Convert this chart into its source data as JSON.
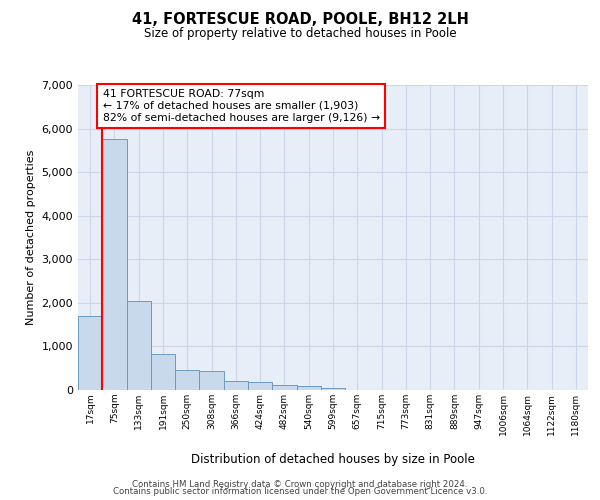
{
  "title": "41, FORTESCUE ROAD, POOLE, BH12 2LH",
  "subtitle": "Size of property relative to detached houses in Poole",
  "xlabel": "Distribution of detached houses by size in Poole",
  "ylabel": "Number of detached properties",
  "footnote1": "Contains HM Land Registry data © Crown copyright and database right 2024.",
  "footnote2": "Contains public sector information licensed under the Open Government Licence v3.0.",
  "bar_color": "#c8d9ec",
  "bar_edge_color": "#6a9bc3",
  "ann_line1": "41 FORTESCUE ROAD: 77sqm",
  "ann_line2": "← 17% of detached houses are smaller (1,903)",
  "ann_line3": "82% of semi-detached houses are larger (9,126) →",
  "red_line_x": 0.5,
  "ylim": [
    0,
    7000
  ],
  "yticks": [
    0,
    1000,
    2000,
    3000,
    4000,
    5000,
    6000,
    7000
  ],
  "bin_labels": [
    "17sqm",
    "75sqm",
    "133sqm",
    "191sqm",
    "250sqm",
    "308sqm",
    "366sqm",
    "424sqm",
    "482sqm",
    "540sqm",
    "599sqm",
    "657sqm",
    "715sqm",
    "773sqm",
    "831sqm",
    "889sqm",
    "947sqm",
    "1006sqm",
    "1064sqm",
    "1122sqm",
    "1180sqm"
  ],
  "bar_heights": [
    1700,
    5750,
    2050,
    820,
    450,
    430,
    210,
    190,
    110,
    95,
    55,
    0,
    0,
    0,
    0,
    0,
    0,
    0,
    0,
    0,
    0
  ],
  "grid_color": "#ccd6e8",
  "bg_color": "#e8eef8",
  "fig_bg": "#ffffff"
}
